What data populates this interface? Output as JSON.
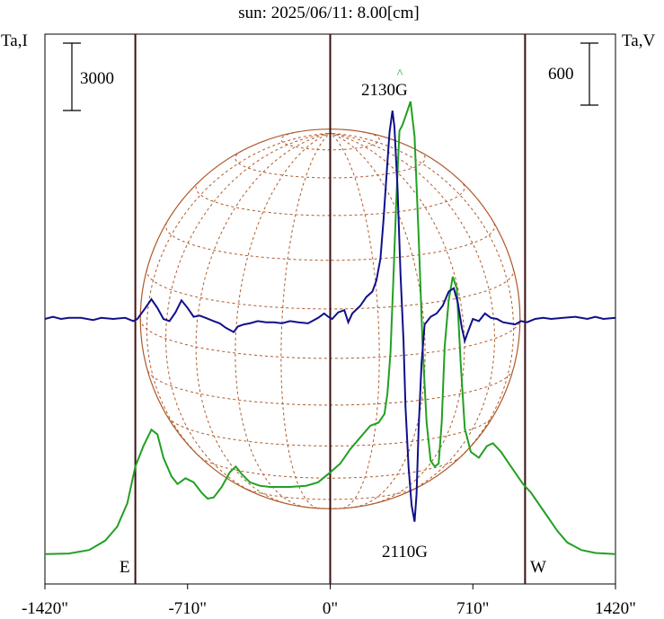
{
  "title": "sun: 2025/06/11: 8.00[cm]",
  "left_axis_label": "Ta,I",
  "right_axis_label": "Ta,V",
  "left_scale_bar": "3000",
  "right_scale_bar": "600",
  "annotations": {
    "upper_peak": "2130G",
    "upper_peak_marker": "^",
    "lower_peak": "2110G",
    "east": "E",
    "west": "W"
  },
  "colors": {
    "title": "#1a1a8c",
    "intensity_line": "#22a022",
    "polarization_line": "#10108a",
    "disk": "#b05a2a",
    "guides": "#3a1010",
    "axis": "#000000"
  },
  "chart_data": {
    "type": "line",
    "x_unit": "arcsec",
    "xlim": [
      -1420,
      1420
    ],
    "x_ticks": [
      -1420,
      -710,
      0,
      710,
      1420
    ],
    "x_tick_labels": [
      "-1420\"",
      "-710\"",
      "0\"",
      "710\"",
      "1420\""
    ],
    "vertical_guides": [
      -970,
      0,
      970
    ],
    "solar_disk_radius": 945,
    "series": [
      {
        "key": "intensity",
        "axis": "left",
        "values": [
          [
            -1420,
            0.05
          ],
          [
            -1300,
            0.06
          ],
          [
            -1200,
            0.12
          ],
          [
            -1120,
            0.28
          ],
          [
            -1060,
            0.52
          ],
          [
            -1010,
            0.92
          ],
          [
            -970,
            1.55
          ],
          [
            -930,
            1.9
          ],
          [
            -890,
            2.18
          ],
          [
            -860,
            2.1
          ],
          [
            -830,
            1.7
          ],
          [
            -790,
            1.38
          ],
          [
            -760,
            1.25
          ],
          [
            -720,
            1.35
          ],
          [
            -680,
            1.28
          ],
          [
            -640,
            1.1
          ],
          [
            -610,
            1.0
          ],
          [
            -580,
            1.02
          ],
          [
            -540,
            1.2
          ],
          [
            -500,
            1.45
          ],
          [
            -470,
            1.55
          ],
          [
            -440,
            1.42
          ],
          [
            -400,
            1.28
          ],
          [
            -350,
            1.22
          ],
          [
            -300,
            1.2
          ],
          [
            -250,
            1.2
          ],
          [
            -200,
            1.2
          ],
          [
            -120,
            1.22
          ],
          [
            -60,
            1.28
          ],
          [
            0,
            1.45
          ],
          [
            50,
            1.6
          ],
          [
            100,
            1.85
          ],
          [
            150,
            2.05
          ],
          [
            200,
            2.25
          ],
          [
            240,
            2.3
          ],
          [
            270,
            2.45
          ],
          [
            285,
            2.8
          ],
          [
            300,
            3.5
          ],
          [
            315,
            4.8
          ],
          [
            330,
            6.2
          ],
          [
            345,
            7.3
          ],
          [
            360,
            7.4
          ],
          [
            380,
            7.6
          ],
          [
            400,
            7.8
          ],
          [
            420,
            7.2
          ],
          [
            440,
            5.5
          ],
          [
            460,
            3.6
          ],
          [
            480,
            2.3
          ],
          [
            500,
            1.65
          ],
          [
            520,
            1.55
          ],
          [
            540,
            1.6
          ],
          [
            555,
            2.3
          ],
          [
            570,
            3.6
          ],
          [
            590,
            4.4
          ],
          [
            610,
            4.8
          ],
          [
            630,
            4.6
          ],
          [
            650,
            3.3
          ],
          [
            670,
            2.2
          ],
          [
            700,
            1.8
          ],
          [
            740,
            1.7
          ],
          [
            780,
            1.9
          ],
          [
            810,
            1.95
          ],
          [
            850,
            1.8
          ],
          [
            900,
            1.55
          ],
          [
            960,
            1.25
          ],
          [
            1000,
            1.1
          ],
          [
            1040,
            0.9
          ],
          [
            1080,
            0.7
          ],
          [
            1130,
            0.45
          ],
          [
            1180,
            0.25
          ],
          [
            1250,
            0.12
          ],
          [
            1320,
            0.07
          ],
          [
            1420,
            0.05
          ]
        ]
      },
      {
        "key": "polarization",
        "axis": "right",
        "values": [
          [
            -1420,
            0.0
          ],
          [
            -1380,
            0.02
          ],
          [
            -1340,
            0.0
          ],
          [
            -1300,
            0.01
          ],
          [
            -1240,
            0.01
          ],
          [
            -1180,
            -0.01
          ],
          [
            -1140,
            0.01
          ],
          [
            -1080,
            0.0
          ],
          [
            -1020,
            0.01
          ],
          [
            -980,
            -0.02
          ],
          [
            -960,
            0.0
          ],
          [
            -920,
            0.1
          ],
          [
            -890,
            0.18
          ],
          [
            -860,
            0.1
          ],
          [
            -830,
            0.0
          ],
          [
            -800,
            -0.02
          ],
          [
            -770,
            0.06
          ],
          [
            -740,
            0.17
          ],
          [
            -710,
            0.1
          ],
          [
            -680,
            0.02
          ],
          [
            -650,
            0.03
          ],
          [
            -620,
            0.01
          ],
          [
            -580,
            -0.02
          ],
          [
            -550,
            -0.04
          ],
          [
            -520,
            -0.08
          ],
          [
            -500,
            -0.1
          ],
          [
            -480,
            -0.12
          ],
          [
            -460,
            -0.07
          ],
          [
            -430,
            -0.05
          ],
          [
            -400,
            -0.04
          ],
          [
            -360,
            -0.02
          ],
          [
            -320,
            -0.03
          ],
          [
            -280,
            -0.03
          ],
          [
            -240,
            -0.04
          ],
          [
            -200,
            -0.02
          ],
          [
            -160,
            -0.03
          ],
          [
            -110,
            -0.04
          ],
          [
            -60,
            0.01
          ],
          [
            -30,
            0.05
          ],
          [
            -10,
            0.02
          ],
          [
            10,
            0.0
          ],
          [
            40,
            0.06
          ],
          [
            70,
            0.08
          ],
          [
            90,
            -0.03
          ],
          [
            110,
            0.05
          ],
          [
            150,
            0.12
          ],
          [
            180,
            0.2
          ],
          [
            210,
            0.25
          ],
          [
            230,
            0.35
          ],
          [
            250,
            0.55
          ],
          [
            265,
            0.9
          ],
          [
            280,
            1.3
          ],
          [
            295,
            1.7
          ],
          [
            310,
            1.9
          ],
          [
            320,
            1.75
          ],
          [
            335,
            1.2
          ],
          [
            350,
            0.4
          ],
          [
            365,
            -0.2
          ],
          [
            375,
            -0.8
          ],
          [
            390,
            -1.35
          ],
          [
            405,
            -1.7
          ],
          [
            420,
            -1.85
          ],
          [
            430,
            -1.6
          ],
          [
            440,
            -1.0
          ],
          [
            455,
            -0.4
          ],
          [
            470,
            -0.05
          ],
          [
            500,
            0.02
          ],
          [
            530,
            0.05
          ],
          [
            560,
            0.12
          ],
          [
            590,
            0.25
          ],
          [
            615,
            0.28
          ],
          [
            635,
            0.15
          ],
          [
            655,
            -0.08
          ],
          [
            670,
            -0.2
          ],
          [
            685,
            -0.12
          ],
          [
            710,
            0.0
          ],
          [
            740,
            -0.02
          ],
          [
            770,
            0.05
          ],
          [
            800,
            0.01
          ],
          [
            830,
            0.0
          ],
          [
            860,
            -0.03
          ],
          [
            890,
            -0.04
          ],
          [
            920,
            -0.05
          ],
          [
            950,
            -0.02
          ],
          [
            980,
            -0.03
          ],
          [
            1020,
            0.0
          ],
          [
            1060,
            0.01
          ],
          [
            1100,
            0.0
          ],
          [
            1160,
            0.01
          ],
          [
            1220,
            0.02
          ],
          [
            1280,
            0.0
          ],
          [
            1320,
            0.02
          ],
          [
            1360,
            0.0
          ],
          [
            1420,
            0.01
          ]
        ]
      }
    ]
  }
}
